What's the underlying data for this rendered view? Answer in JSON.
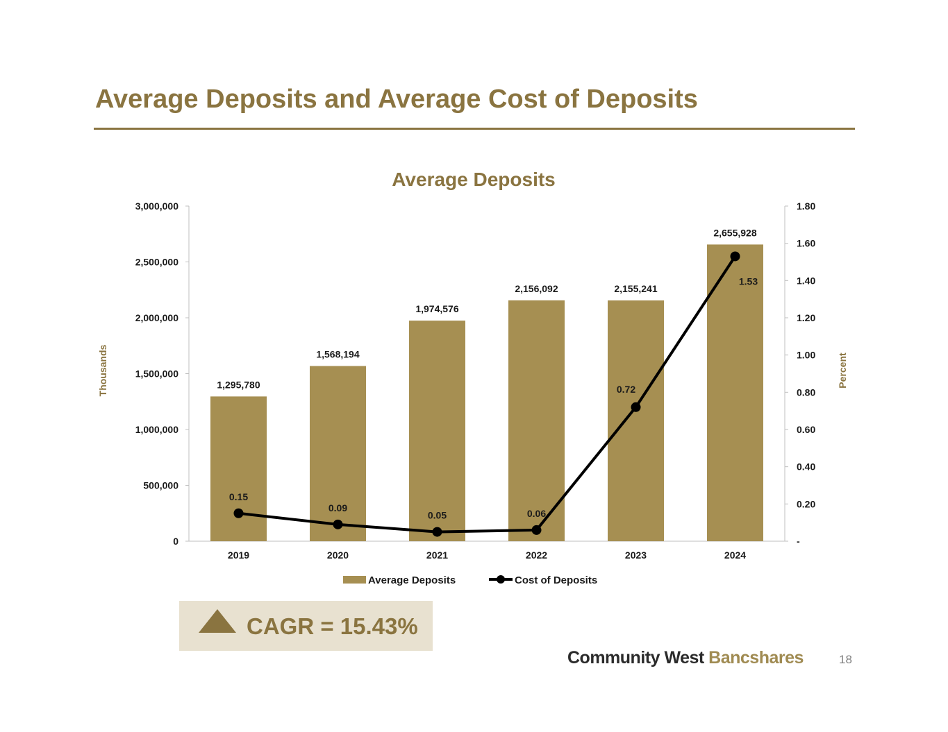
{
  "slide": {
    "title": "Average Deposits and Average Cost of Deposits",
    "page_number": "18"
  },
  "logo": {
    "part1": "Community West ",
    "part2": "Bancshares"
  },
  "cagr": {
    "label": "CAGR = 15.43%",
    "icon": "triangle-up-icon"
  },
  "colors": {
    "accent": "#8a7440",
    "bar": "#a68f52",
    "line": "#000000",
    "cagr_bg": "#e8e1d0"
  },
  "chart_data": {
    "type": "bar",
    "title": "Average Deposits",
    "categories": [
      "2019",
      "2020",
      "2021",
      "2022",
      "2023",
      "2024"
    ],
    "y_left": {
      "label": "Thousands",
      "range": [
        0,
        3000000
      ],
      "ticks": [
        0,
        500000,
        1000000,
        1500000,
        2000000,
        2500000,
        3000000
      ],
      "tick_labels": [
        "0",
        "500,000",
        "1,000,000",
        "1,500,000",
        "2,000,000",
        "2,500,000",
        "3,000,000"
      ]
    },
    "y_right": {
      "label": "Percent",
      "range": [
        0,
        1.8
      ],
      "ticks": [
        0,
        0.2,
        0.4,
        0.6,
        0.8,
        1.0,
        1.2,
        1.4,
        1.6,
        1.8
      ],
      "tick_labels": [
        "-",
        "0.20",
        "0.40",
        "0.60",
        "0.80",
        "1.00",
        "1.20",
        "1.40",
        "1.60",
        "1.80"
      ]
    },
    "series": [
      {
        "name": "Average Deposits",
        "type": "bar",
        "axis": "left",
        "values": [
          1295780,
          1568194,
          1974576,
          2156092,
          2155241,
          2655928
        ],
        "labels": [
          "1,295,780",
          "1,568,194",
          "1,974,576",
          "2,156,092",
          "2,155,241",
          "2,655,928"
        ]
      },
      {
        "name": "Cost of Deposits",
        "type": "line",
        "axis": "right",
        "values": [
          0.15,
          0.09,
          0.05,
          0.06,
          0.72,
          1.53
        ],
        "labels": [
          "0.15",
          "0.09",
          "0.05",
          "0.06",
          "0.72",
          "1.53"
        ]
      }
    ],
    "legend": "bottom",
    "grid": false
  }
}
